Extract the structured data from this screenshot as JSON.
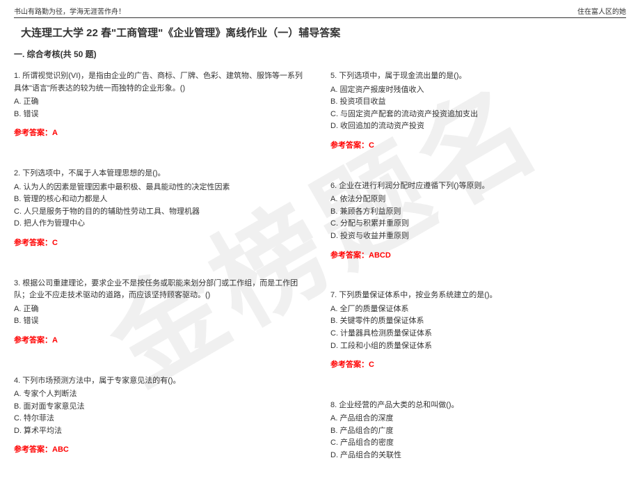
{
  "header": {
    "left": "书山有路勤为径，学海无涯苦作舟！",
    "right": "住在富人区的她"
  },
  "watermark": "金榜题名",
  "title": "大连理工大学 22 春\"工商管理\"《企业管理》离线作业（一）辅导答案",
  "section": "一. 综合考核(共 50 题)",
  "answer_label": "参考答案：",
  "left_questions": [
    {
      "text": "1. 所谓视觉识别(VI)，是指由企业的广告、商标、厂牌、色彩、建筑物、服饰等一系列具体\"语言\"所表达的较为统一而独特的企业形象。()",
      "options": [
        "A. 正确",
        "B. 错误"
      ],
      "answer": "A"
    },
    {
      "text": "2. 下列选项中，不属于人本管理思想的是()。",
      "options": [
        "A. 认为人的因素是管理因素中最积极、最具能动性的决定性因素",
        "B. 管理的核心和动力都是人",
        "C. 人只是服务于物的目的的辅助性劳动工具、物理机器",
        "D. 把人作为管理中心"
      ],
      "answer": "C"
    },
    {
      "text": "3. 根据公司重建理论，要求企业不是按任务或职能来划分部门或工作组，而是工作团队；企业不应走技术驱动的道路，而应该坚持顾客驱动。()",
      "options": [
        "A. 正确",
        "B. 错误"
      ],
      "answer": "A"
    },
    {
      "text": "4. 下列市场预测方法中，属于专家意见法的有()。",
      "options": [
        "A. 专家个人判断法",
        "B. 面对面专家意见法",
        "C. 特尔菲法",
        "D. 算术平均法"
      ],
      "answer": "ABC"
    }
  ],
  "right_questions": [
    {
      "text": "5. 下列选项中，属于现金流出量的是()。",
      "options": [
        "A. 固定资产报废时残值收入",
        "B. 投资项目收益",
        "C. 与固定资产配套的流动资产投资追加支出",
        "D. 收回追加的流动资产投资"
      ],
      "answer": "C"
    },
    {
      "text": "6. 企业在进行利润分配时应遵循下列()等原则。",
      "options": [
        "A. 依法分配原则",
        "B. 兼顾各方利益原则",
        "C. 分配与积累并重原则",
        "D. 投资与收益并重原则"
      ],
      "answer": "ABCD"
    },
    {
      "text": "7. 下列质量保证体系中，按业务系统建立的是()。",
      "options": [
        "A. 全厂的质量保证体系",
        "B. 关键零件的质量保证体系",
        "C. 计量器具检测质量保证体系",
        "D. 工段和小组的质量保证体系"
      ],
      "answer": "C"
    },
    {
      "text": "8. 企业经营的产品大类的总和叫做()。",
      "options": [
        "A. 产品组合的深度",
        "B. 产品组合的广度",
        "C. 产品组合的密度",
        "D. 产品组合的关联性"
      ],
      "answer": ""
    }
  ]
}
